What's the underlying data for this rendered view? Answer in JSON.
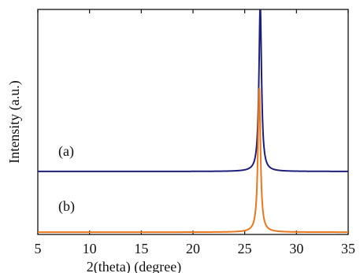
{
  "chart_data": {
    "type": "line",
    "xlabel": "2(theta) (degree)",
    "ylabel": "Intensity (a.u.)",
    "xlim": [
      5,
      35
    ],
    "xticks": [
      5,
      10,
      15,
      20,
      25,
      30,
      35
    ],
    "y_tick_labels": false,
    "grid": false,
    "legend": "none",
    "series": [
      {
        "name": "(a)",
        "color": "#1f1f7a",
        "baseline": 0.28,
        "peak_x": 26.5,
        "peak_y": 1.02,
        "fwhm": 0.3
      },
      {
        "name": "(b)",
        "color": "#e8771e",
        "baseline": 0.01,
        "peak_x": 26.4,
        "peak_y": 0.65,
        "fwhm": 0.3
      }
    ]
  }
}
